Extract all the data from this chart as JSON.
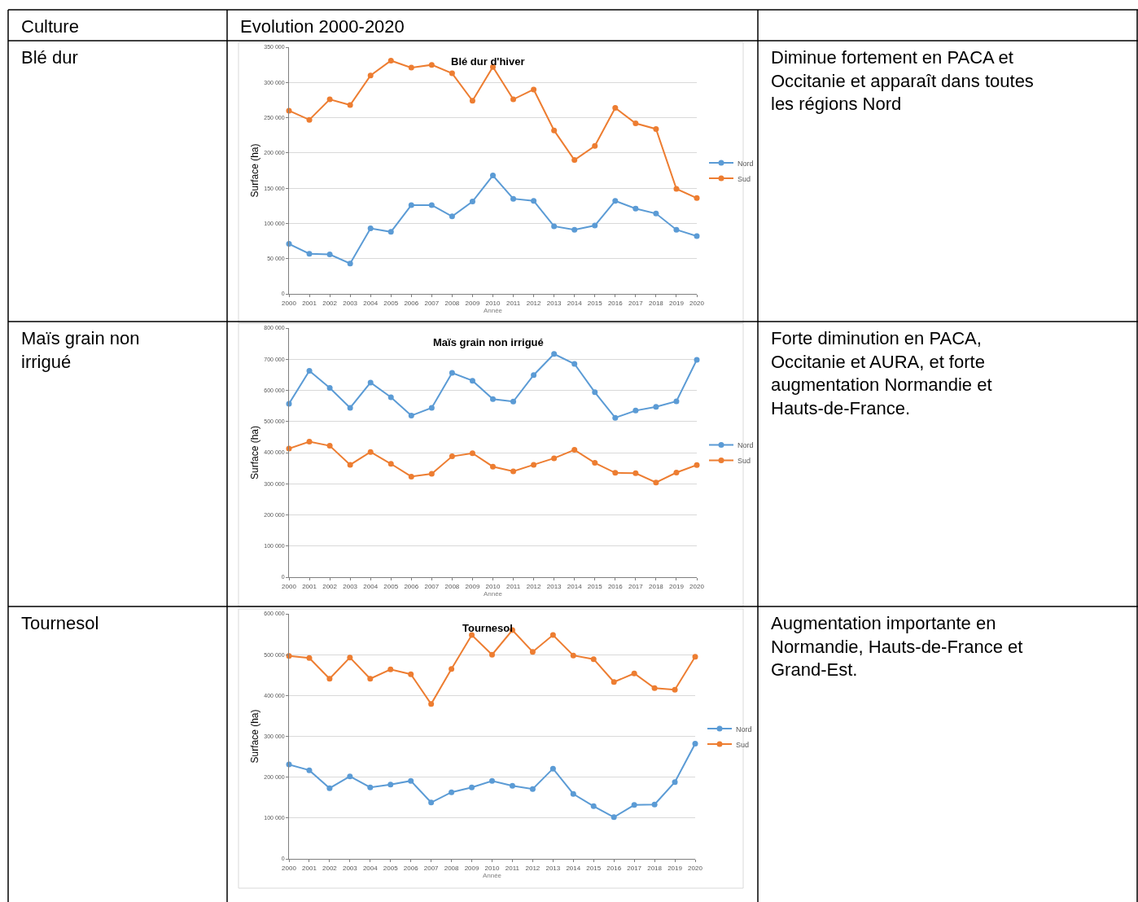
{
  "chart_data": [
    {
      "type": "other",
      "annotations": [
        "Culture",
        "Evolution 2000-2020"
      ]
    },
    {
      "type": "other",
      "annotations": [
        "Blé dur"
      ]
    },
    {
      "type": "line",
      "title": "Blé dur d'hiver",
      "xlabel": "Année",
      "ylabel": "Surface (ha)",
      "x": [
        2000,
        2001,
        2002,
        2003,
        2004,
        2005,
        2006,
        2007,
        2008,
        2009,
        2010,
        2011,
        2012,
        2013,
        2014,
        2015,
        2016,
        2017,
        2018,
        2019,
        2020
      ],
      "xlim": [
        2000,
        2020
      ],
      "xticks": [
        2000,
        2001,
        2002,
        2003,
        2004,
        2005,
        2006,
        2007,
        2008,
        2009,
        2010,
        2011,
        2012,
        2013,
        2014,
        2015,
        2016,
        2017,
        2018,
        2019,
        2020
      ],
      "ylim": [
        0,
        350000
      ],
      "yticks": [
        0,
        {
          "value": 50000,
          "label": "50 000"
        },
        {
          "value": 100000,
          "label": "100 000"
        },
        {
          "value": 150000,
          "label": "150 000"
        },
        {
          "value": 200000,
          "label": "200 000"
        },
        {
          "value": 250000,
          "label": "250 000"
        },
        {
          "value": 300000,
          "label": "300 000"
        },
        {
          "value": 350000,
          "label": "350 000"
        }
      ],
      "grid": "y",
      "legend": "right",
      "marker": "circle",
      "series": [
        {
          "name": "Nord",
          "color": "#5b9bd5",
          "values": [
            71000,
            57000,
            56000,
            43000,
            93000,
            88000,
            126000,
            126000,
            110000,
            131000,
            168000,
            135000,
            132000,
            96000,
            91000,
            97000,
            132000,
            121000,
            114000,
            91000,
            82000
          ]
        },
        {
          "name": "Sud",
          "color": "#ed7d31",
          "values": [
            260000,
            247000,
            276000,
            268000,
            310000,
            331000,
            321000,
            325000,
            313000,
            274000,
            322000,
            276000,
            290000,
            232000,
            190000,
            210000,
            264000,
            242000,
            234000,
            149000,
            136000
          ]
        }
      ]
    },
    {
      "type": "other",
      "annotations": [
        "Diminue fortement en PACA et Occitanie et apparaît dans toutes les régions Nord"
      ]
    },
    {
      "type": "other",
      "annotations": [
        "Maïs grain non irrigué"
      ]
    },
    {
      "type": "line",
      "title": "Maïs grain non irrigué",
      "xlabel": "Année",
      "ylabel": "Surface (ha)",
      "x": [
        2000,
        2001,
        2002,
        2003,
        2004,
        2005,
        2006,
        2007,
        2008,
        2009,
        2010,
        2011,
        2012,
        2013,
        2014,
        2015,
        2016,
        2017,
        2018,
        2019,
        2020
      ],
      "xlim": [
        2000,
        2020
      ],
      "xticks": [
        2000,
        2001,
        2002,
        2003,
        2004,
        2005,
        2006,
        2007,
        2008,
        2009,
        2010,
        2011,
        2012,
        2013,
        2014,
        2015,
        2016,
        2017,
        2018,
        2019,
        2020
      ],
      "ylim": [
        0,
        800000
      ],
      "yticks": [
        0,
        {
          "value": 100000,
          "label": "100 000"
        },
        {
          "value": 200000,
          "label": "200 000"
        },
        {
          "value": 300000,
          "label": "300 000"
        },
        {
          "value": 400000,
          "label": "400 000"
        },
        {
          "value": 500000,
          "label": "500 000"
        },
        {
          "value": 600000,
          "label": "600 000"
        },
        {
          "value": 700000,
          "label": "700 000"
        },
        {
          "value": 800000,
          "label": "800 000"
        }
      ],
      "grid": "y",
      "legend": "right",
      "marker": "circle",
      "series": [
        {
          "name": "Nord",
          "color": "#5b9bd5",
          "values": [
            557000,
            663000,
            608000,
            544000,
            625000,
            578000,
            519000,
            544000,
            656000,
            631000,
            572000,
            564000,
            649000,
            717000,
            685000,
            594000,
            512000,
            535000,
            547000,
            565000,
            698000
          ]
        },
        {
          "name": "Sud",
          "color": "#ed7d31",
          "values": [
            413000,
            435000,
            422000,
            361000,
            402000,
            364000,
            323000,
            332000,
            388000,
            398000,
            355000,
            340000,
            361000,
            382000,
            409000,
            367000,
            335000,
            334000,
            304000,
            336000,
            360000
          ]
        }
      ]
    },
    {
      "type": "other",
      "annotations": [
        "Forte diminution en PACA, Occitanie et AURA, et forte augmentation Normandie et Hauts-de-France."
      ]
    },
    {
      "type": "other",
      "annotations": [
        "Tournesol"
      ]
    },
    {
      "type": "line",
      "title": "Tournesol",
      "xlabel": "Année",
      "ylabel": "Surface (ha)",
      "x": [
        2000,
        2001,
        2002,
        2003,
        2004,
        2005,
        2006,
        2007,
        2008,
        2009,
        2010,
        2011,
        2012,
        2013,
        2014,
        2015,
        2016,
        2017,
        2018,
        2019,
        2020
      ],
      "xlim": [
        2000,
        2020
      ],
      "xticks": [
        2000,
        2001,
        2002,
        2003,
        2004,
        2005,
        2006,
        2007,
        2008,
        2009,
        2010,
        2011,
        2012,
        2013,
        2014,
        2015,
        2016,
        2017,
        2018,
        2019,
        2020
      ],
      "ylim": [
        0,
        600000
      ],
      "yticks": [
        0,
        {
          "value": 100000,
          "label": "100 000"
        },
        {
          "value": 200000,
          "label": "200 000"
        },
        {
          "value": 300000,
          "label": "300 000"
        },
        {
          "value": 400000,
          "label": "400 000"
        },
        {
          "value": 500000,
          "label": "500 000"
        },
        {
          "value": 600000,
          "label": "600 000"
        }
      ],
      "grid": "y",
      "legend": "right",
      "marker": "circle",
      "series": [
        {
          "name": "Nord",
          "color": "#5b9bd5",
          "values": [
            231000,
            217000,
            173000,
            202000,
            175000,
            182000,
            191000,
            138000,
            163000,
            175000,
            191000,
            179000,
            171000,
            221000,
            159000,
            129000,
            102000,
            132000,
            133000,
            188000,
            282000
          ]
        },
        {
          "name": "Sud",
          "color": "#ed7d31",
          "values": [
            497000,
            492000,
            441000,
            493000,
            441000,
            464000,
            452000,
            379000,
            465000,
            548000,
            500000,
            560000,
            507000,
            548000,
            498000,
            489000,
            433000,
            454000,
            418000,
            414000,
            495000
          ]
        }
      ]
    },
    {
      "type": "other",
      "annotations": [
        "Augmentation importante en Normandie, Hauts-de-France et Grand-Est."
      ]
    }
  ]
}
